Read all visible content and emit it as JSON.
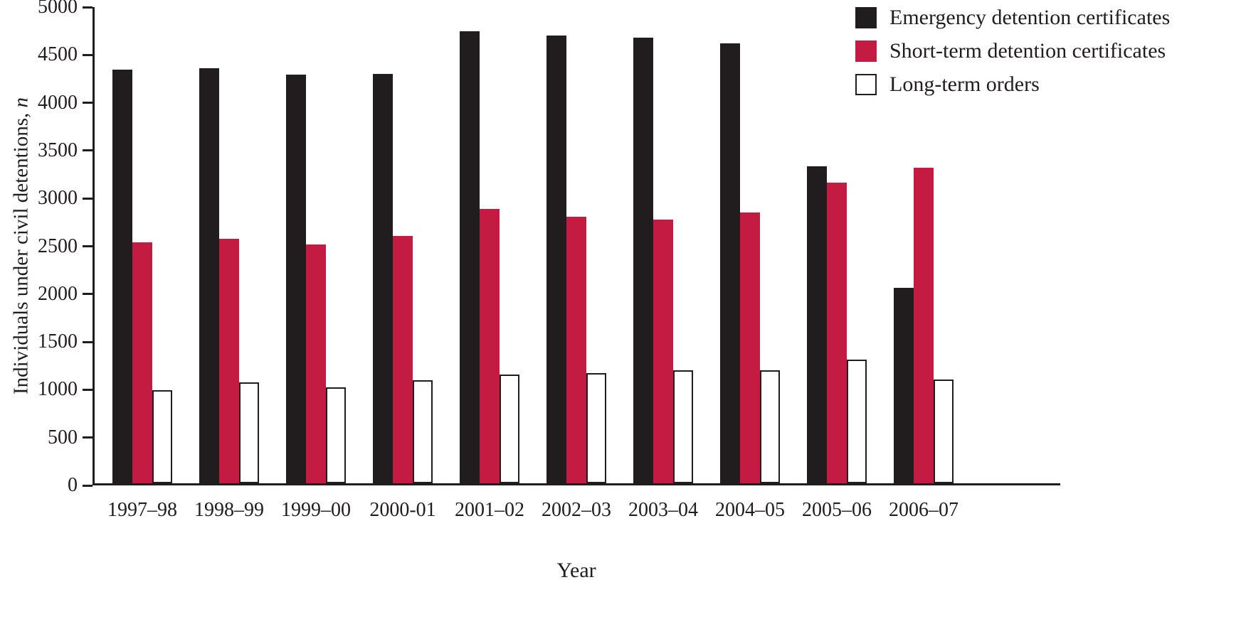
{
  "chart_data": {
    "type": "bar",
    "xlabel": "Year",
    "ylabel": "Individuals under civil detentions, n",
    "ylabel_main": "Individuals under civil detentions, ",
    "ylabel_italic": "n",
    "ylim": [
      0,
      5000
    ],
    "yticks": [
      0,
      500,
      1000,
      1500,
      2000,
      2500,
      3000,
      3500,
      4000,
      4500,
      5000
    ],
    "grid": false,
    "legend_position": "top-right",
    "axis_color": "#211d1f",
    "categories": [
      "1997–98",
      "1998–99",
      "1999–00",
      "2000-01",
      "2001–02",
      "2002–03",
      "2003–04",
      "2004–05",
      "2005–06",
      "2006–07"
    ],
    "series": [
      {
        "name": "Emergency detention certificates",
        "color": "#211d1f",
        "values": [
          4340,
          4360,
          4290,
          4300,
          4750,
          4700,
          4680,
          4620,
          3330,
          2050
        ]
      },
      {
        "name": "Short-term detention certificates",
        "color": "#c31b41",
        "values": [
          2530,
          2570,
          2510,
          2600,
          2880,
          2800,
          2770,
          2840,
          3160,
          3310
        ]
      },
      {
        "name": "Long-term orders",
        "color": "#ffffff",
        "border": "#211d1f",
        "values": [
          980,
          1060,
          1010,
          1080,
          1140,
          1160,
          1190,
          1190,
          1300,
          1090
        ]
      }
    ]
  }
}
